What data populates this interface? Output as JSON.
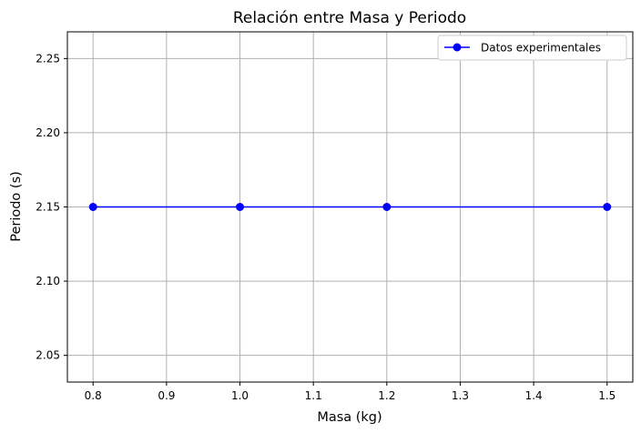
{
  "chart_data": {
    "type": "line",
    "title": "Relación entre Masa y Periodo",
    "xlabel": "Masa (kg)",
    "ylabel": "Periodo (s)",
    "xlim": [
      0.765,
      1.535
    ],
    "ylim": [
      2.032,
      2.268
    ],
    "xticks": [
      "0.8",
      "0.9",
      "1.0",
      "1.1",
      "1.2",
      "1.3",
      "1.4",
      "1.5"
    ],
    "xtick_values": [
      0.8,
      0.9,
      1.0,
      1.1,
      1.2,
      1.3,
      1.4,
      1.5
    ],
    "yticks": [
      "2.05",
      "2.10",
      "2.15",
      "2.20",
      "2.25"
    ],
    "ytick_values": [
      2.05,
      2.1,
      2.15,
      2.2,
      2.25
    ],
    "grid": true,
    "legend_position": "top-right",
    "series": [
      {
        "name": "Datos experimentales",
        "color": "#0000ff",
        "marker": "circle",
        "x": [
          0.8,
          1.0,
          1.2,
          1.5
        ],
        "y": [
          2.15,
          2.15,
          2.15,
          2.15
        ]
      }
    ]
  }
}
